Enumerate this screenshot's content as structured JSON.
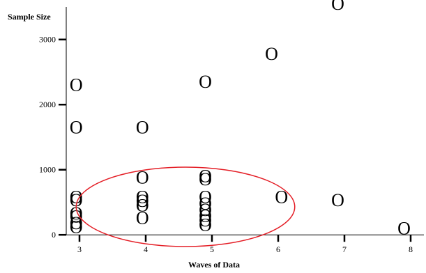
{
  "chart_data": {
    "type": "scatter",
    "xlabel": "Waves of Data",
    "ylabel": "Sample Size",
    "x_ticks": [
      3,
      4,
      5,
      6,
      7,
      8
    ],
    "y_ticks": [
      0,
      1000,
      2000,
      3000
    ],
    "xlim": [
      2.8,
      8.2
    ],
    "ylim": [
      -30,
      3500
    ],
    "marker_symbol": "O",
    "marker_color": "#000000",
    "highlight_color": "#e41e26",
    "grid": false,
    "points": [
      {
        "x": 2.95,
        "y": 2300
      },
      {
        "x": 2.95,
        "y": 1650
      },
      {
        "x": 2.95,
        "y": 580
      },
      {
        "x": 2.95,
        "y": 530
      },
      {
        "x": 2.95,
        "y": 330
      },
      {
        "x": 2.95,
        "y": 280
      },
      {
        "x": 2.95,
        "y": 180
      },
      {
        "x": 2.95,
        "y": 120
      },
      {
        "x": 3.95,
        "y": 1650
      },
      {
        "x": 3.95,
        "y": 880
      },
      {
        "x": 3.95,
        "y": 580
      },
      {
        "x": 3.95,
        "y": 520
      },
      {
        "x": 3.95,
        "y": 450
      },
      {
        "x": 3.95,
        "y": 260
      },
      {
        "x": 4.9,
        "y": 2350
      },
      {
        "x": 4.9,
        "y": 900
      },
      {
        "x": 4.9,
        "y": 850
      },
      {
        "x": 4.9,
        "y": 580
      },
      {
        "x": 4.9,
        "y": 480
      },
      {
        "x": 4.9,
        "y": 380
      },
      {
        "x": 4.9,
        "y": 290
      },
      {
        "x": 4.9,
        "y": 220
      },
      {
        "x": 4.9,
        "y": 150
      },
      {
        "x": 5.9,
        "y": 2780
      },
      {
        "x": 6.05,
        "y": 580
      },
      {
        "x": 6.9,
        "y": 3550
      },
      {
        "x": 6.9,
        "y": 530
      },
      {
        "x": 7.9,
        "y": 100
      }
    ],
    "highlight_region": {
      "x_center": 4.6,
      "y_center": 430,
      "x_radius": 1.65,
      "y_radius": 610
    }
  }
}
